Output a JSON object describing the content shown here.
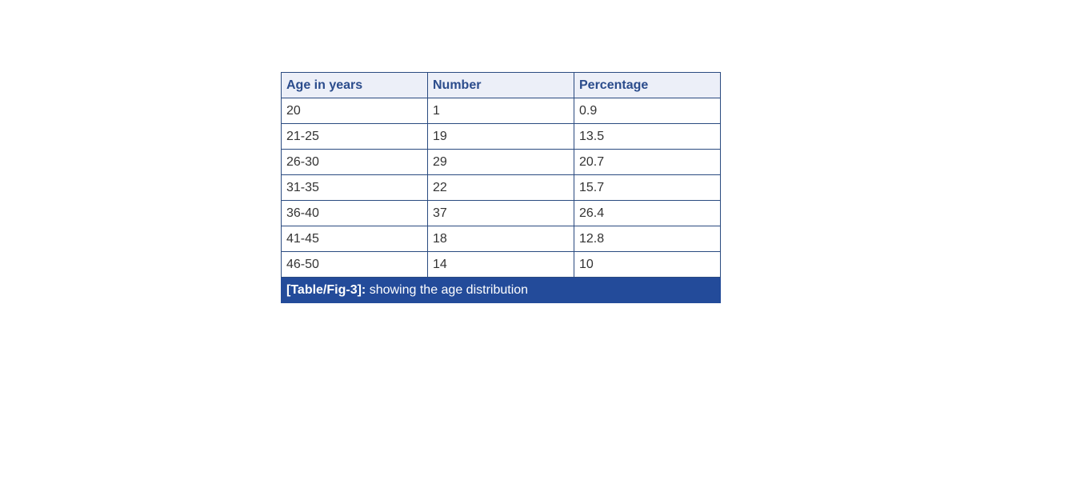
{
  "table": {
    "headers": [
      "Age in years",
      "Number",
      "Percentage"
    ],
    "rows": [
      [
        "20",
        "1",
        "0.9"
      ],
      [
        "21-25",
        "19",
        "13.5"
      ],
      [
        "26-30",
        "29",
        "20.7"
      ],
      [
        "31-35",
        "22",
        "15.7"
      ],
      [
        "36-40",
        "37",
        "26.4"
      ],
      [
        "41-45",
        "18",
        "12.8"
      ],
      [
        "46-50",
        "14",
        "10"
      ]
    ],
    "caption_label": "[Table/Fig-3]:",
    "caption_text": " showing the age distribution"
  },
  "colors": {
    "header_bg": "#eceff8",
    "header_text": "#2b4c8c",
    "caption_bg": "#234b9a",
    "border": "#2a4a80"
  }
}
